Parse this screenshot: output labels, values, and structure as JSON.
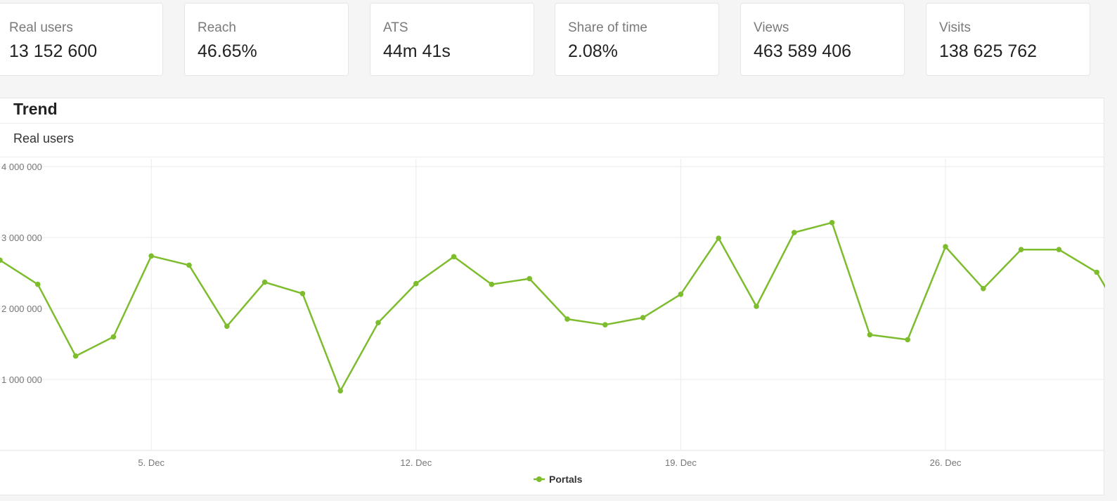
{
  "kpis": [
    {
      "label": "Real users",
      "value": "13 152 600"
    },
    {
      "label": "Reach",
      "value": "46.65%"
    },
    {
      "label": "ATS",
      "value": "44m 41s"
    },
    {
      "label": "Share of time",
      "value": "2.08%"
    },
    {
      "label": "Views",
      "value": "463 589 406"
    },
    {
      "label": "Visits",
      "value": "138 625 762"
    }
  ],
  "trend": {
    "title": "Trend",
    "metric": "Real users"
  },
  "chart_data": {
    "type": "line",
    "title": "",
    "xlabel": "",
    "ylabel": "",
    "x_tick_labels": [
      "5. Dec",
      "12. Dec",
      "19. Dec",
      "26. Dec"
    ],
    "x_tick_days": [
      5,
      12,
      19,
      26
    ],
    "y_tick_labels": [
      "1 000 000",
      "2 000 000",
      "3 000 000",
      "4 000 000"
    ],
    "y_tick_values": [
      1000000,
      2000000,
      3000000,
      4000000
    ],
    "ylim": [
      0,
      4000000
    ],
    "xlim": [
      1,
      30.2
    ],
    "grid": true,
    "legend_placement": "bottom-center",
    "color": "#7dbd2d",
    "series": [
      {
        "name": "Portals",
        "x": [
          1,
          2,
          3,
          4,
          5,
          6,
          7,
          8,
          9,
          10,
          11,
          12,
          13,
          14,
          15,
          16,
          17,
          18,
          19,
          20,
          21,
          22,
          23,
          24,
          25,
          26,
          27,
          28,
          29,
          30,
          31
        ],
        "values": [
          2680000,
          2340000,
          1330000,
          1600000,
          2740000,
          2610000,
          1750000,
          2370000,
          2210000,
          840000,
          1800000,
          2350000,
          2730000,
          2340000,
          2420000,
          1850000,
          1770000,
          1870000,
          2200000,
          2990000,
          2030000,
          3070000,
          3210000,
          1630000,
          1560000,
          2870000,
          2280000,
          2830000,
          2830000,
          2510000,
          1600000
        ]
      }
    ]
  }
}
